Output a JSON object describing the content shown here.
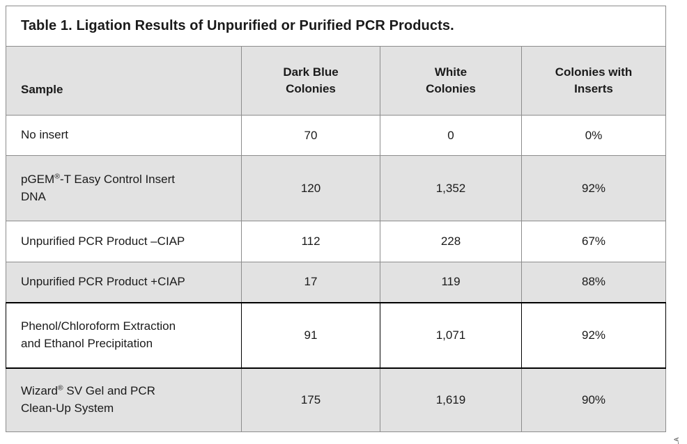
{
  "title": "Table 1. Ligation Results of Unpurified or Purified PCR Products.",
  "figure_code": "9207LA",
  "colors": {
    "shaded_row": "#e2e2e2",
    "grid_line": "#8c8c8c",
    "emphasis_border": "#000000",
    "text": "#1a1a1a"
  },
  "table": {
    "headers": {
      "sample": {
        "lines": [
          "Sample"
        ]
      },
      "dark_blue": {
        "lines": [
          "Dark Blue",
          "Colonies"
        ]
      },
      "white": {
        "lines": [
          "White",
          "Colonies"
        ]
      },
      "inserts": {
        "lines": [
          "Colonies with",
          "Inserts"
        ]
      }
    },
    "rows": [
      {
        "sample_lines": [
          "No insert"
        ],
        "dark_blue": "70",
        "white": "0",
        "inserts_pct": "0%"
      },
      {
        "sample_lines": [
          "pGEM®-T Easy Control Insert",
          "DNA"
        ],
        "dark_blue": "120",
        "white": "1,352",
        "inserts_pct": "92%"
      },
      {
        "sample_lines": [
          "Unpurified PCR Product –CIAP"
        ],
        "dark_blue": "112",
        "white": "228",
        "inserts_pct": "67%"
      },
      {
        "sample_lines": [
          "Unpurified PCR Product +CIAP"
        ],
        "dark_blue": "17",
        "white": "119",
        "inserts_pct": "88%"
      },
      {
        "sample_lines": [
          "Phenol/Chloroform Extraction",
          "and Ethanol Precipitation"
        ],
        "dark_blue": "91",
        "white": "1,071",
        "inserts_pct": "92%"
      },
      {
        "sample_lines": [
          "Wizard® SV Gel and PCR",
          "Clean-Up System"
        ],
        "dark_blue": "175",
        "white": "1,619",
        "inserts_pct": "90%"
      }
    ]
  }
}
